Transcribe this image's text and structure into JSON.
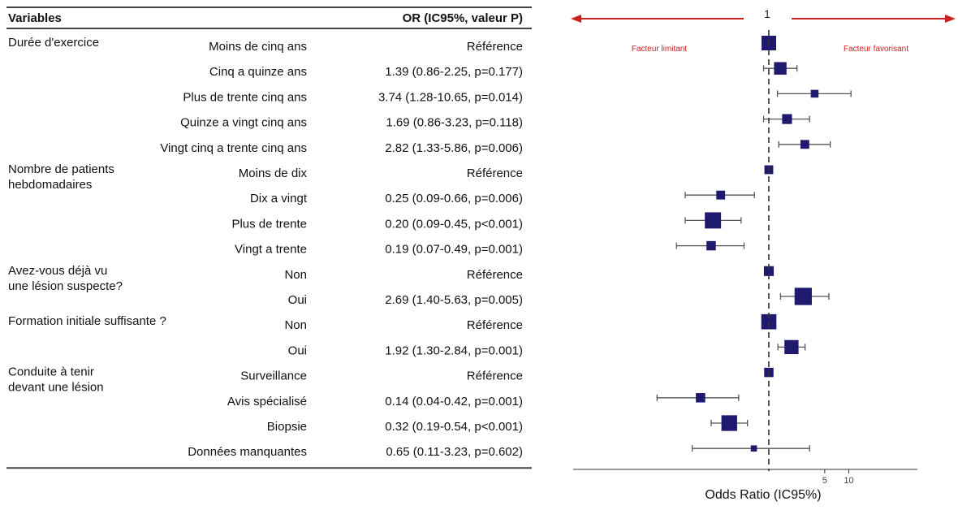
{
  "chart_data": {
    "type": "forest",
    "table_headers": {
      "variables": "Variables",
      "estimate": "OR (IC95%, valeur P)"
    },
    "reference_value": 1,
    "x_scale": "log",
    "x_ticks": [
      5,
      10
    ],
    "xlabel": "Odds Ratio (IC95%)",
    "annotations": {
      "left": "Facteur limitant",
      "right": "Facteur favorisant"
    },
    "groups": [
      {
        "label": [
          "Durée d'exercice"
        ],
        "rows": [
          {
            "level": "Moins de cinq ans",
            "text": "Référence",
            "or": 1,
            "lo": null,
            "hi": null,
            "weight": 1.0
          },
          {
            "level": "Cinq a quinze ans",
            "text": "1.39 (0.86-2.25, p=0.177)",
            "or": 1.39,
            "lo": 0.86,
            "hi": 2.25,
            "weight": 0.8
          },
          {
            "level": "Plus de trente cinq ans",
            "text": "3.74 (1.28-10.65, p=0.014)",
            "or": 3.74,
            "lo": 1.28,
            "hi": 10.65,
            "weight": 0.35
          },
          {
            "level": "Quinze a vingt cinq ans",
            "text": "1.69 (0.86-3.23, p=0.118)",
            "or": 1.69,
            "lo": 0.86,
            "hi": 3.23,
            "weight": 0.55
          },
          {
            "level": "Vingt cinq a trente cinq ans",
            "text": "2.82 (1.33-5.86, p=0.006)",
            "or": 2.82,
            "lo": 1.33,
            "hi": 5.86,
            "weight": 0.45
          }
        ]
      },
      {
        "label": [
          "Nombre de patients",
          "hebdomadaires"
        ],
        "rows": [
          {
            "level": "Moins de dix",
            "text": "Référence",
            "or": 1,
            "lo": null,
            "hi": null,
            "weight": 0.45
          },
          {
            "level": "Dix a vingt",
            "text": "0.25 (0.09-0.66, p=0.006)",
            "or": 0.25,
            "lo": 0.09,
            "hi": 0.66,
            "weight": 0.45
          },
          {
            "level": "Plus de trente",
            "text": "0.20 (0.09-0.45, p<0.001)",
            "or": 0.2,
            "lo": 0.09,
            "hi": 0.45,
            "weight": 1.15
          },
          {
            "level": "Vingt a trente",
            "text": "0.19 (0.07-0.49, p=0.001)",
            "or": 0.19,
            "lo": 0.07,
            "hi": 0.49,
            "weight": 0.5
          }
        ]
      },
      {
        "label": [
          "Avez-vous déjà vu",
          "une lésion suspecte?"
        ],
        "rows": [
          {
            "level": "Non",
            "text": "Référence",
            "or": 1,
            "lo": null,
            "hi": null,
            "weight": 0.55
          },
          {
            "level": "Oui",
            "text": "2.69 (1.40-5.63, p=0.005)",
            "or": 2.69,
            "lo": 1.4,
            "hi": 5.63,
            "weight": 1.25
          }
        ]
      },
      {
        "label": [
          "Formation initiale suffisante ?"
        ],
        "rows": [
          {
            "level": "Non",
            "text": "Référence",
            "or": 1,
            "lo": null,
            "hi": null,
            "weight": 1.05
          },
          {
            "level": "Oui",
            "text": "1.92 (1.30-2.84, p=0.001)",
            "or": 1.92,
            "lo": 1.3,
            "hi": 2.84,
            "weight": 0.95
          }
        ]
      },
      {
        "label": [
          "Conduite à tenir",
          "devant une lésion"
        ],
        "rows": [
          {
            "level": "Surveillance",
            "text": "Référence",
            "or": 1,
            "lo": null,
            "hi": null,
            "weight": 0.5
          },
          {
            "level": "Avis spécialisé",
            "text": "0.14 (0.04-0.42, p=0.001)",
            "or": 0.14,
            "lo": 0.04,
            "hi": 0.42,
            "weight": 0.5
          },
          {
            "level": "Biopsie",
            "text": "0.32 (0.19-0.54, p<0.001)",
            "or": 0.32,
            "lo": 0.19,
            "hi": 0.54,
            "weight": 1.1
          },
          {
            "level": "Données manquantes",
            "text": "0.65 (0.11-3.23, p=0.602)",
            "or": 0.65,
            "lo": 0.11,
            "hi": 3.23,
            "weight": 0.2
          }
        ]
      }
    ]
  },
  "colors": {
    "marker": "#1f1a6e",
    "ci_line": "#555555",
    "annotation": "#cc1f1f",
    "arrow": "#cc1f1f",
    "reference_line": "#333333",
    "rule": "#444444"
  }
}
